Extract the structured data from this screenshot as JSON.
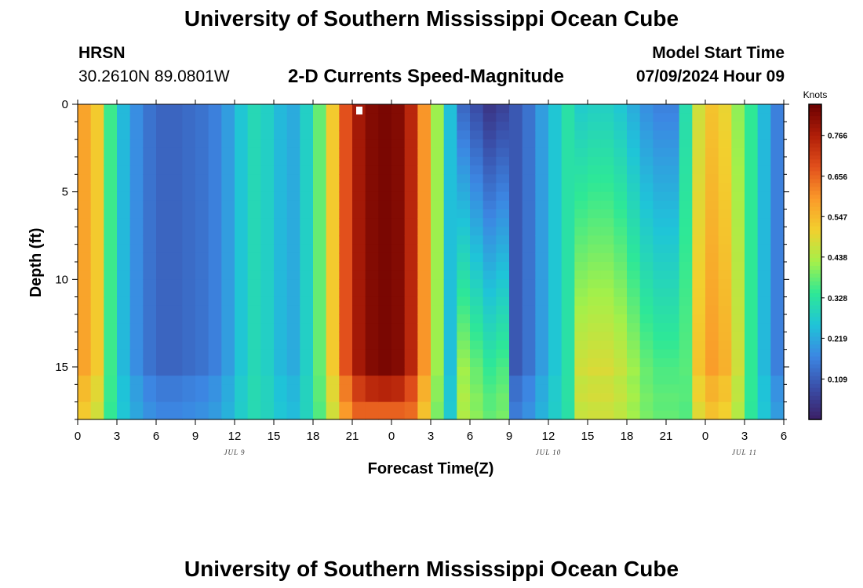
{
  "header": {
    "title": "University of Southern Mississippi Ocean Cube",
    "station": "HRSN",
    "coords": "30.2610N  89.0801W",
    "subtitle": "2-D Currents Speed-Magnitude",
    "model_label": "Model Start Time",
    "model_time": "07/09/2024 Hour 09"
  },
  "footer": {
    "title": "University of Southern Mississippi Ocean Cube"
  },
  "chart_data": {
    "type": "heatmap",
    "title": "2-D Currents Speed-Magnitude",
    "xlabel": "Forecast Time(Z)",
    "ylabel": "Depth (ft)",
    "x_tick_labels": [
      "0",
      "3",
      "6",
      "9",
      "12",
      "15",
      "18",
      "21",
      "0",
      "3",
      "6",
      "9",
      "12",
      "15",
      "18",
      "21",
      "0",
      "3",
      "6"
    ],
    "x_date_labels": [
      "JUL 9",
      "JUL 10",
      "JUL 11"
    ],
    "y_ticks": [
      0,
      5,
      10,
      15
    ],
    "ylim": [
      0,
      18
    ],
    "y_inverted": true,
    "colorbar": {
      "label": "Knots",
      "ticks": [
        "0.766",
        "0.656",
        "0.547",
        "0.438",
        "0.328",
        "0.219",
        "0.109"
      ],
      "range": [
        0.0,
        0.85
      ],
      "colormap": [
        "#3b1f66",
        "#3a4ea8",
        "#3c87e3",
        "#1fc4d8",
        "#2ee896",
        "#a4f04a",
        "#f2d02e",
        "#fa9a2a",
        "#e2501c",
        "#b01e08",
        "#6a0000"
      ]
    },
    "grid": false,
    "time_hours": [
      0,
      1,
      2,
      3,
      4,
      5,
      6,
      7,
      8,
      9,
      10,
      11,
      12,
      13,
      14,
      15,
      16,
      17,
      18,
      19,
      20,
      21,
      22,
      23,
      24,
      25,
      26,
      27,
      28,
      29,
      30,
      31,
      32,
      33,
      34,
      35,
      36,
      37,
      38,
      39,
      40,
      41,
      42,
      43,
      44,
      45,
      46,
      47,
      48,
      49,
      50,
      51,
      52,
      53,
      54
    ],
    "surface_speed_knots": [
      0.58,
      0.52,
      0.35,
      0.24,
      0.18,
      0.14,
      0.12,
      0.12,
      0.13,
      0.14,
      0.16,
      0.2,
      0.26,
      0.3,
      0.28,
      0.24,
      0.22,
      0.28,
      0.38,
      0.52,
      0.68,
      0.78,
      0.82,
      0.83,
      0.82,
      0.75,
      0.6,
      0.42,
      0.25,
      0.12,
      0.08,
      0.04,
      0.06,
      0.1,
      0.14,
      0.2,
      0.26,
      0.32,
      0.35,
      0.36,
      0.36,
      0.34,
      0.3,
      0.26,
      0.24,
      0.24,
      0.36,
      0.52,
      0.58,
      0.55,
      0.46,
      0.34,
      0.24,
      0.16,
      0.12
    ]
  }
}
